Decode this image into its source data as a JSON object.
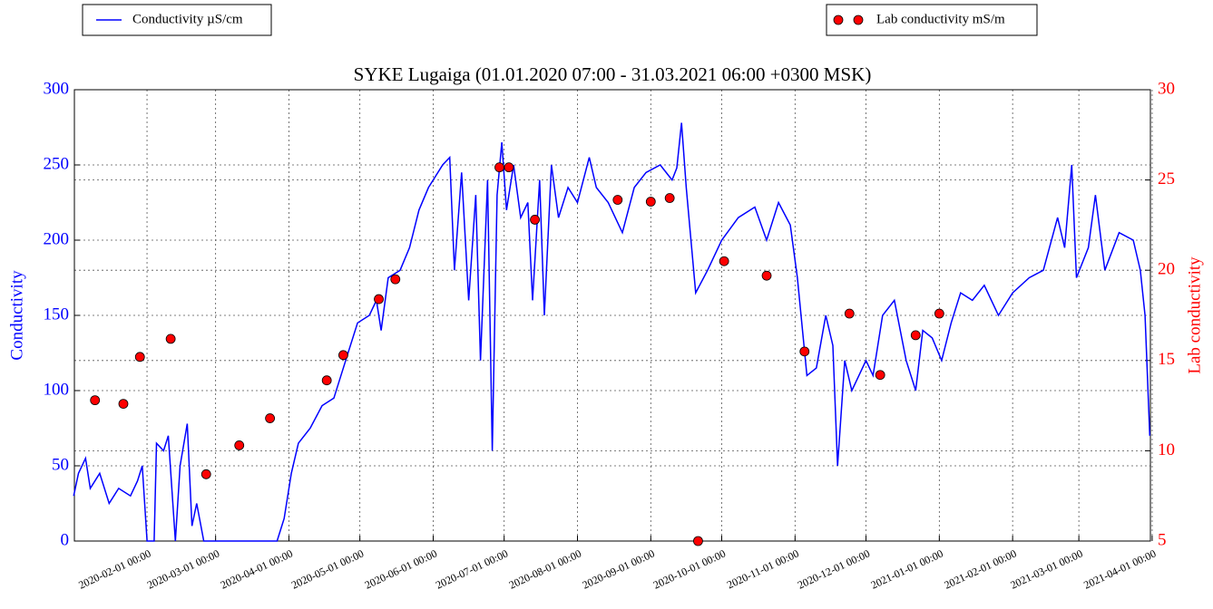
{
  "chart_data": {
    "type": "line",
    "title": "SYKE Lugaiga (01.01.2020 07:00 - 31.03.2021 06:00 +0300 MSK)",
    "ylabel": "Conductivity",
    "y2label": "Lab conductivity",
    "xlim": [
      "2020-01-01 07:00",
      "2021-03-31 06:00"
    ],
    "xticks": [
      "2020-02-01 00:00",
      "2020-03-01 00:00",
      "2020-04-01 00:00",
      "2020-05-01 00:00",
      "2020-06-01 00:00",
      "2020-07-01 00:00",
      "2020-08-01 00:00",
      "2020-09-01 00:00",
      "2020-10-01 00:00",
      "2020-11-01 00:00",
      "2020-12-01 00:00",
      "2021-01-01 00:00",
      "2021-02-01 00:00",
      "2021-03-01 00:00",
      "2021-04-01 00:00"
    ],
    "ylim": [
      0,
      300
    ],
    "yticks": [
      0,
      50,
      100,
      150,
      200,
      250,
      300
    ],
    "y2lim": [
      5,
      30
    ],
    "y2ticks": [
      5,
      10,
      15,
      20,
      25,
      30
    ],
    "grid": true,
    "series": [
      {
        "name": "Conductivity µS/cm",
        "color": "#0000ff",
        "x": [
          "2020-01-01",
          "2020-01-03",
          "2020-01-06",
          "2020-01-08",
          "2020-01-12",
          "2020-01-16",
          "2020-01-20",
          "2020-01-25",
          "2020-01-28",
          "2020-01-30",
          "2020-02-01",
          "2020-02-04",
          "2020-02-05",
          "2020-02-08",
          "2020-02-10",
          "2020-02-13",
          "2020-02-15",
          "2020-02-18",
          "2020-02-20",
          "2020-02-22",
          "2020-02-25",
          "2020-03-01",
          "2020-03-27",
          "2020-03-30",
          "2020-04-02",
          "2020-04-05",
          "2020-04-10",
          "2020-04-15",
          "2020-04-20",
          "2020-04-25",
          "2020-04-30",
          "2020-05-05",
          "2020-05-08",
          "2020-05-10",
          "2020-05-13",
          "2020-05-18",
          "2020-05-22",
          "2020-05-26",
          "2020-05-30",
          "2020-06-05",
          "2020-06-08",
          "2020-06-10",
          "2020-06-13",
          "2020-06-16",
          "2020-06-19",
          "2020-06-21",
          "2020-06-24",
          "2020-06-26",
          "2020-06-28",
          "2020-06-30",
          "2020-07-02",
          "2020-07-05",
          "2020-07-08",
          "2020-07-11",
          "2020-07-13",
          "2020-07-16",
          "2020-07-18",
          "2020-07-21",
          "2020-07-24",
          "2020-07-28",
          "2020-08-01",
          "2020-08-06",
          "2020-08-09",
          "2020-08-14",
          "2020-08-20",
          "2020-08-25",
          "2020-08-30",
          "2020-09-05",
          "2020-09-10",
          "2020-09-12",
          "2020-09-14",
          "2020-09-16",
          "2020-09-20",
          "2020-09-25",
          "2020-10-01",
          "2020-10-08",
          "2020-10-15",
          "2020-10-20",
          "2020-10-25",
          "2020-10-30",
          "2020-11-02",
          "2020-11-06",
          "2020-11-10",
          "2020-11-14",
          "2020-11-17",
          "2020-11-19",
          "2020-11-22",
          "2020-11-25",
          "2020-11-28",
          "2020-12-01",
          "2020-12-04",
          "2020-12-08",
          "2020-12-13",
          "2020-12-18",
          "2020-12-22",
          "2020-12-25",
          "2020-12-29",
          "2021-01-02",
          "2021-01-06",
          "2021-01-10",
          "2021-01-15",
          "2021-01-20",
          "2021-01-26",
          "2021-02-01",
          "2021-02-08",
          "2021-02-14",
          "2021-02-20",
          "2021-02-23",
          "2021-02-26",
          "2021-02-28",
          "2021-03-05",
          "2021-03-08",
          "2021-03-12",
          "2021-03-18",
          "2021-03-24",
          "2021-03-27",
          "2021-03-29",
          "2021-03-31"
        ],
        "values": [
          30,
          45,
          55,
          35,
          45,
          25,
          35,
          30,
          40,
          50,
          0,
          0,
          65,
          60,
          70,
          0,
          50,
          78,
          10,
          25,
          0,
          0,
          0,
          15,
          45,
          65,
          75,
          90,
          95,
          120,
          145,
          150,
          160,
          140,
          175,
          180,
          195,
          220,
          235,
          250,
          255,
          180,
          245,
          160,
          230,
          120,
          240,
          60,
          230,
          265,
          220,
          250,
          215,
          225,
          160,
          240,
          150,
          250,
          215,
          235,
          225,
          255,
          235,
          225,
          205,
          235,
          245,
          250,
          240,
          248,
          278,
          235,
          165,
          180,
          200,
          215,
          222,
          200,
          225,
          210,
          175,
          110,
          115,
          150,
          130,
          50,
          120,
          100,
          110,
          120,
          110,
          150,
          160,
          120,
          100,
          140,
          135,
          120,
          145,
          165,
          160,
          170,
          150,
          165,
          175,
          180,
          215,
          195,
          250,
          175,
          195,
          230,
          180,
          205,
          200,
          180,
          150,
          70
        ]
      },
      {
        "name": "Lab conductivity mS/m",
        "color": "#ff0000",
        "type": "scatter",
        "axis": "y2",
        "x": [
          "2020-01-10",
          "2020-01-22",
          "2020-01-29",
          "2020-02-11",
          "2020-02-26",
          "2020-03-11",
          "2020-03-24",
          "2020-04-17",
          "2020-04-24",
          "2020-05-09",
          "2020-05-16",
          "2020-06-29",
          "2020-07-03",
          "2020-07-14",
          "2020-08-18",
          "2020-09-01",
          "2020-09-09",
          "2020-09-21",
          "2020-10-02",
          "2020-10-20",
          "2020-11-05",
          "2020-11-24",
          "2020-12-07",
          "2020-12-22",
          "2021-01-01"
        ],
        "values": [
          12.8,
          12.6,
          15.2,
          16.2,
          8.7,
          10.3,
          11.8,
          13.9,
          15.3,
          18.4,
          19.5,
          25.7,
          25.7,
          22.8,
          23.9,
          23.8,
          24.0,
          5.0,
          20.5,
          19.7,
          15.5,
          17.6,
          14.2,
          16.4,
          17.6
        ]
      }
    ]
  }
}
